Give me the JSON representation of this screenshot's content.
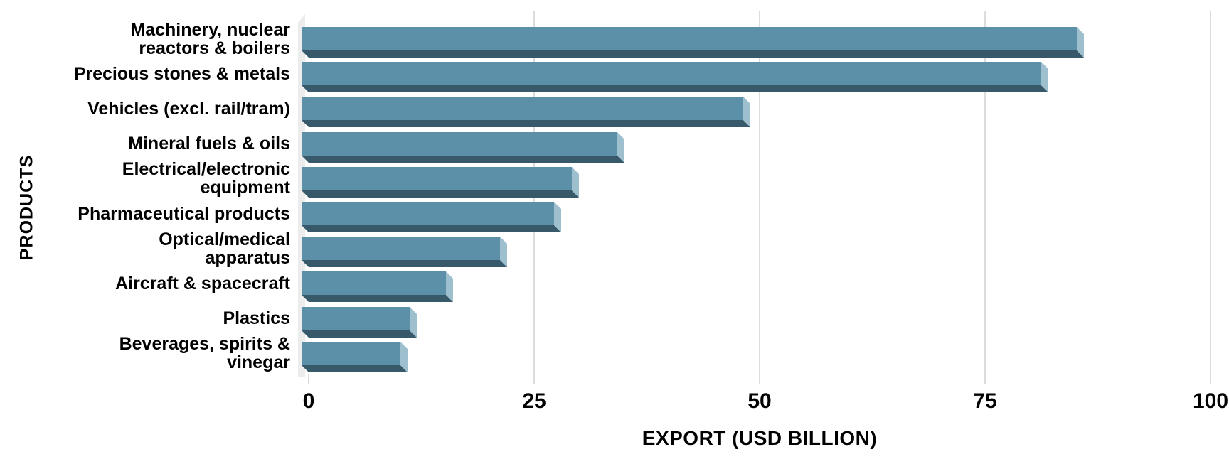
{
  "chart_data": {
    "type": "bar",
    "orientation": "horizontal",
    "title": "",
    "xlabel": "EXPORT (USD BILLION)",
    "ylabel": "PRODUCTS",
    "xlim": [
      0,
      100
    ],
    "x_ticks": [
      0,
      25,
      50,
      75,
      100
    ],
    "x_tick_labels": [
      "0",
      "25",
      "50",
      "75",
      "100"
    ],
    "grid": true,
    "legend": false,
    "categories": [
      "Machinery, nuclear reactors & boilers",
      "Precious stones & metals",
      "Vehicles (excl. rail/tram)",
      "Mineral fuels & oils",
      "Electrical/electronic equipment",
      "Pharmaceutical products",
      "Optical/medical apparatus",
      "Aircraft & spacecraft",
      "Plastics",
      "Beverages, spirits & vinegar"
    ],
    "values": [
      86,
      82,
      49,
      35,
      30,
      28,
      22,
      16,
      12,
      11
    ],
    "style": "3d-extruded-bars"
  },
  "display": {
    "category_lines": [
      [
        "Machinery, nuclear",
        "reactors & boilers"
      ],
      [
        "Precious stones & metals"
      ],
      [
        "Vehicles (excl. rail/tram)"
      ],
      [
        "Mineral fuels & oils"
      ],
      [
        "Electrical/electronic",
        "equipment"
      ],
      [
        "Pharmaceutical products"
      ],
      [
        "Optical/medical",
        "apparatus"
      ],
      [
        "Aircraft & spacecraft"
      ],
      [
        "Plastics"
      ],
      [
        "Beverages, spirits &",
        "vinegar"
      ]
    ]
  },
  "colors": {
    "bar_face": "#5b90a8",
    "bar_side": "#9dbfce",
    "bar_bottom": "#37596a",
    "gridline": "#dcdcdc",
    "wall": "#ececec",
    "text": "#000000",
    "background": "#ffffff"
  }
}
